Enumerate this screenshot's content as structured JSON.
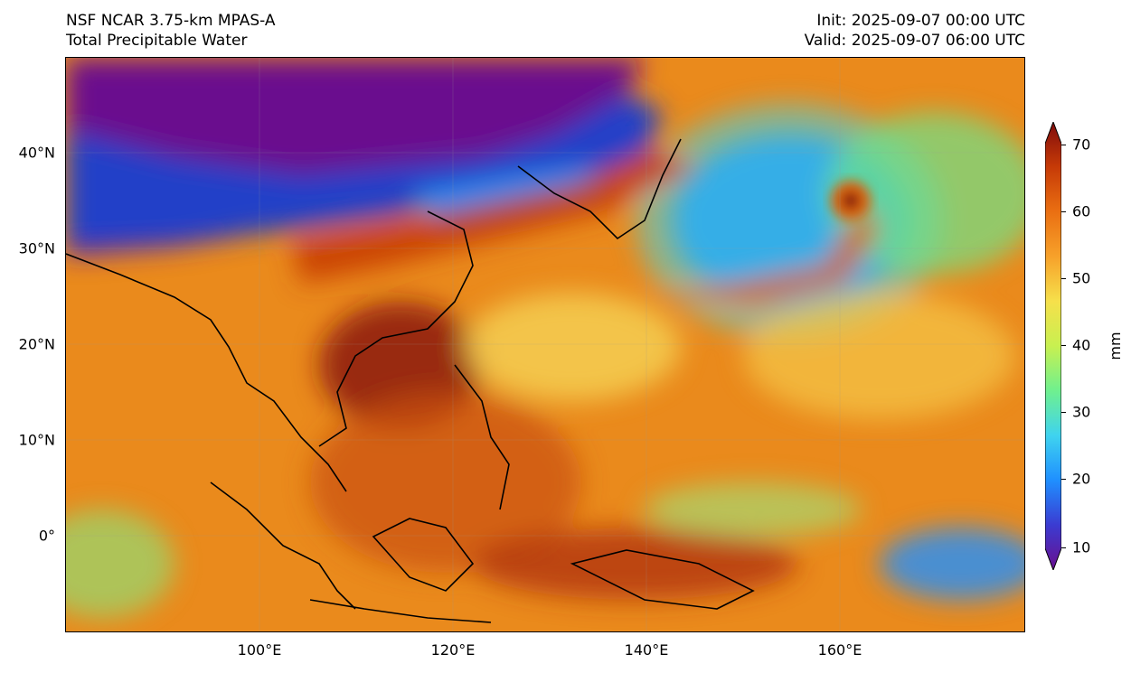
{
  "header": {
    "title_line1": "NSF NCAR 3.75-km MPAS-A",
    "title_line2": "Total Precipitable Water",
    "init_text": "Init: 2025-09-07 00:00 UTC",
    "valid_text": "Valid: 2025-09-07 06:00 UTC"
  },
  "map": {
    "lon_range": [
      80,
      179
    ],
    "lat_range": [
      -10,
      50
    ],
    "lat_ticks": [
      {
        "value": 40,
        "label": "40°N"
      },
      {
        "value": 30,
        "label": "30°N"
      },
      {
        "value": 20,
        "label": "20°N"
      },
      {
        "value": 10,
        "label": "10°N"
      },
      {
        "value": 0,
        "label": "0°"
      }
    ],
    "lon_ticks": [
      {
        "value": 100,
        "label": "100°E"
      },
      {
        "value": 120,
        "label": "120°E"
      },
      {
        "value": 140,
        "label": "140°E"
      },
      {
        "value": 160,
        "label": "160°E"
      }
    ],
    "colors": {
      "dry": "#6a0f8e",
      "low": "#1f6fe0",
      "mid": "#4fe0c8",
      "green": "#7ee06b",
      "yellow": "#f3e46a",
      "orange": "#f39a1f",
      "dark_orange": "#d8640c",
      "brown": "#8b1a0a"
    }
  },
  "colorbar": {
    "unit": "mm",
    "min": 10,
    "max": 70,
    "ticks": [
      "70",
      "60",
      "50",
      "40",
      "30",
      "20",
      "10"
    ],
    "stops": [
      "#6a0f8e",
      "#3b3bd1",
      "#1f8fff",
      "#3fd3ef",
      "#6ff08f",
      "#c8f050",
      "#f6e04b",
      "#f7a12a",
      "#ea6f12",
      "#c63a07",
      "#7f0c0c"
    ]
  }
}
